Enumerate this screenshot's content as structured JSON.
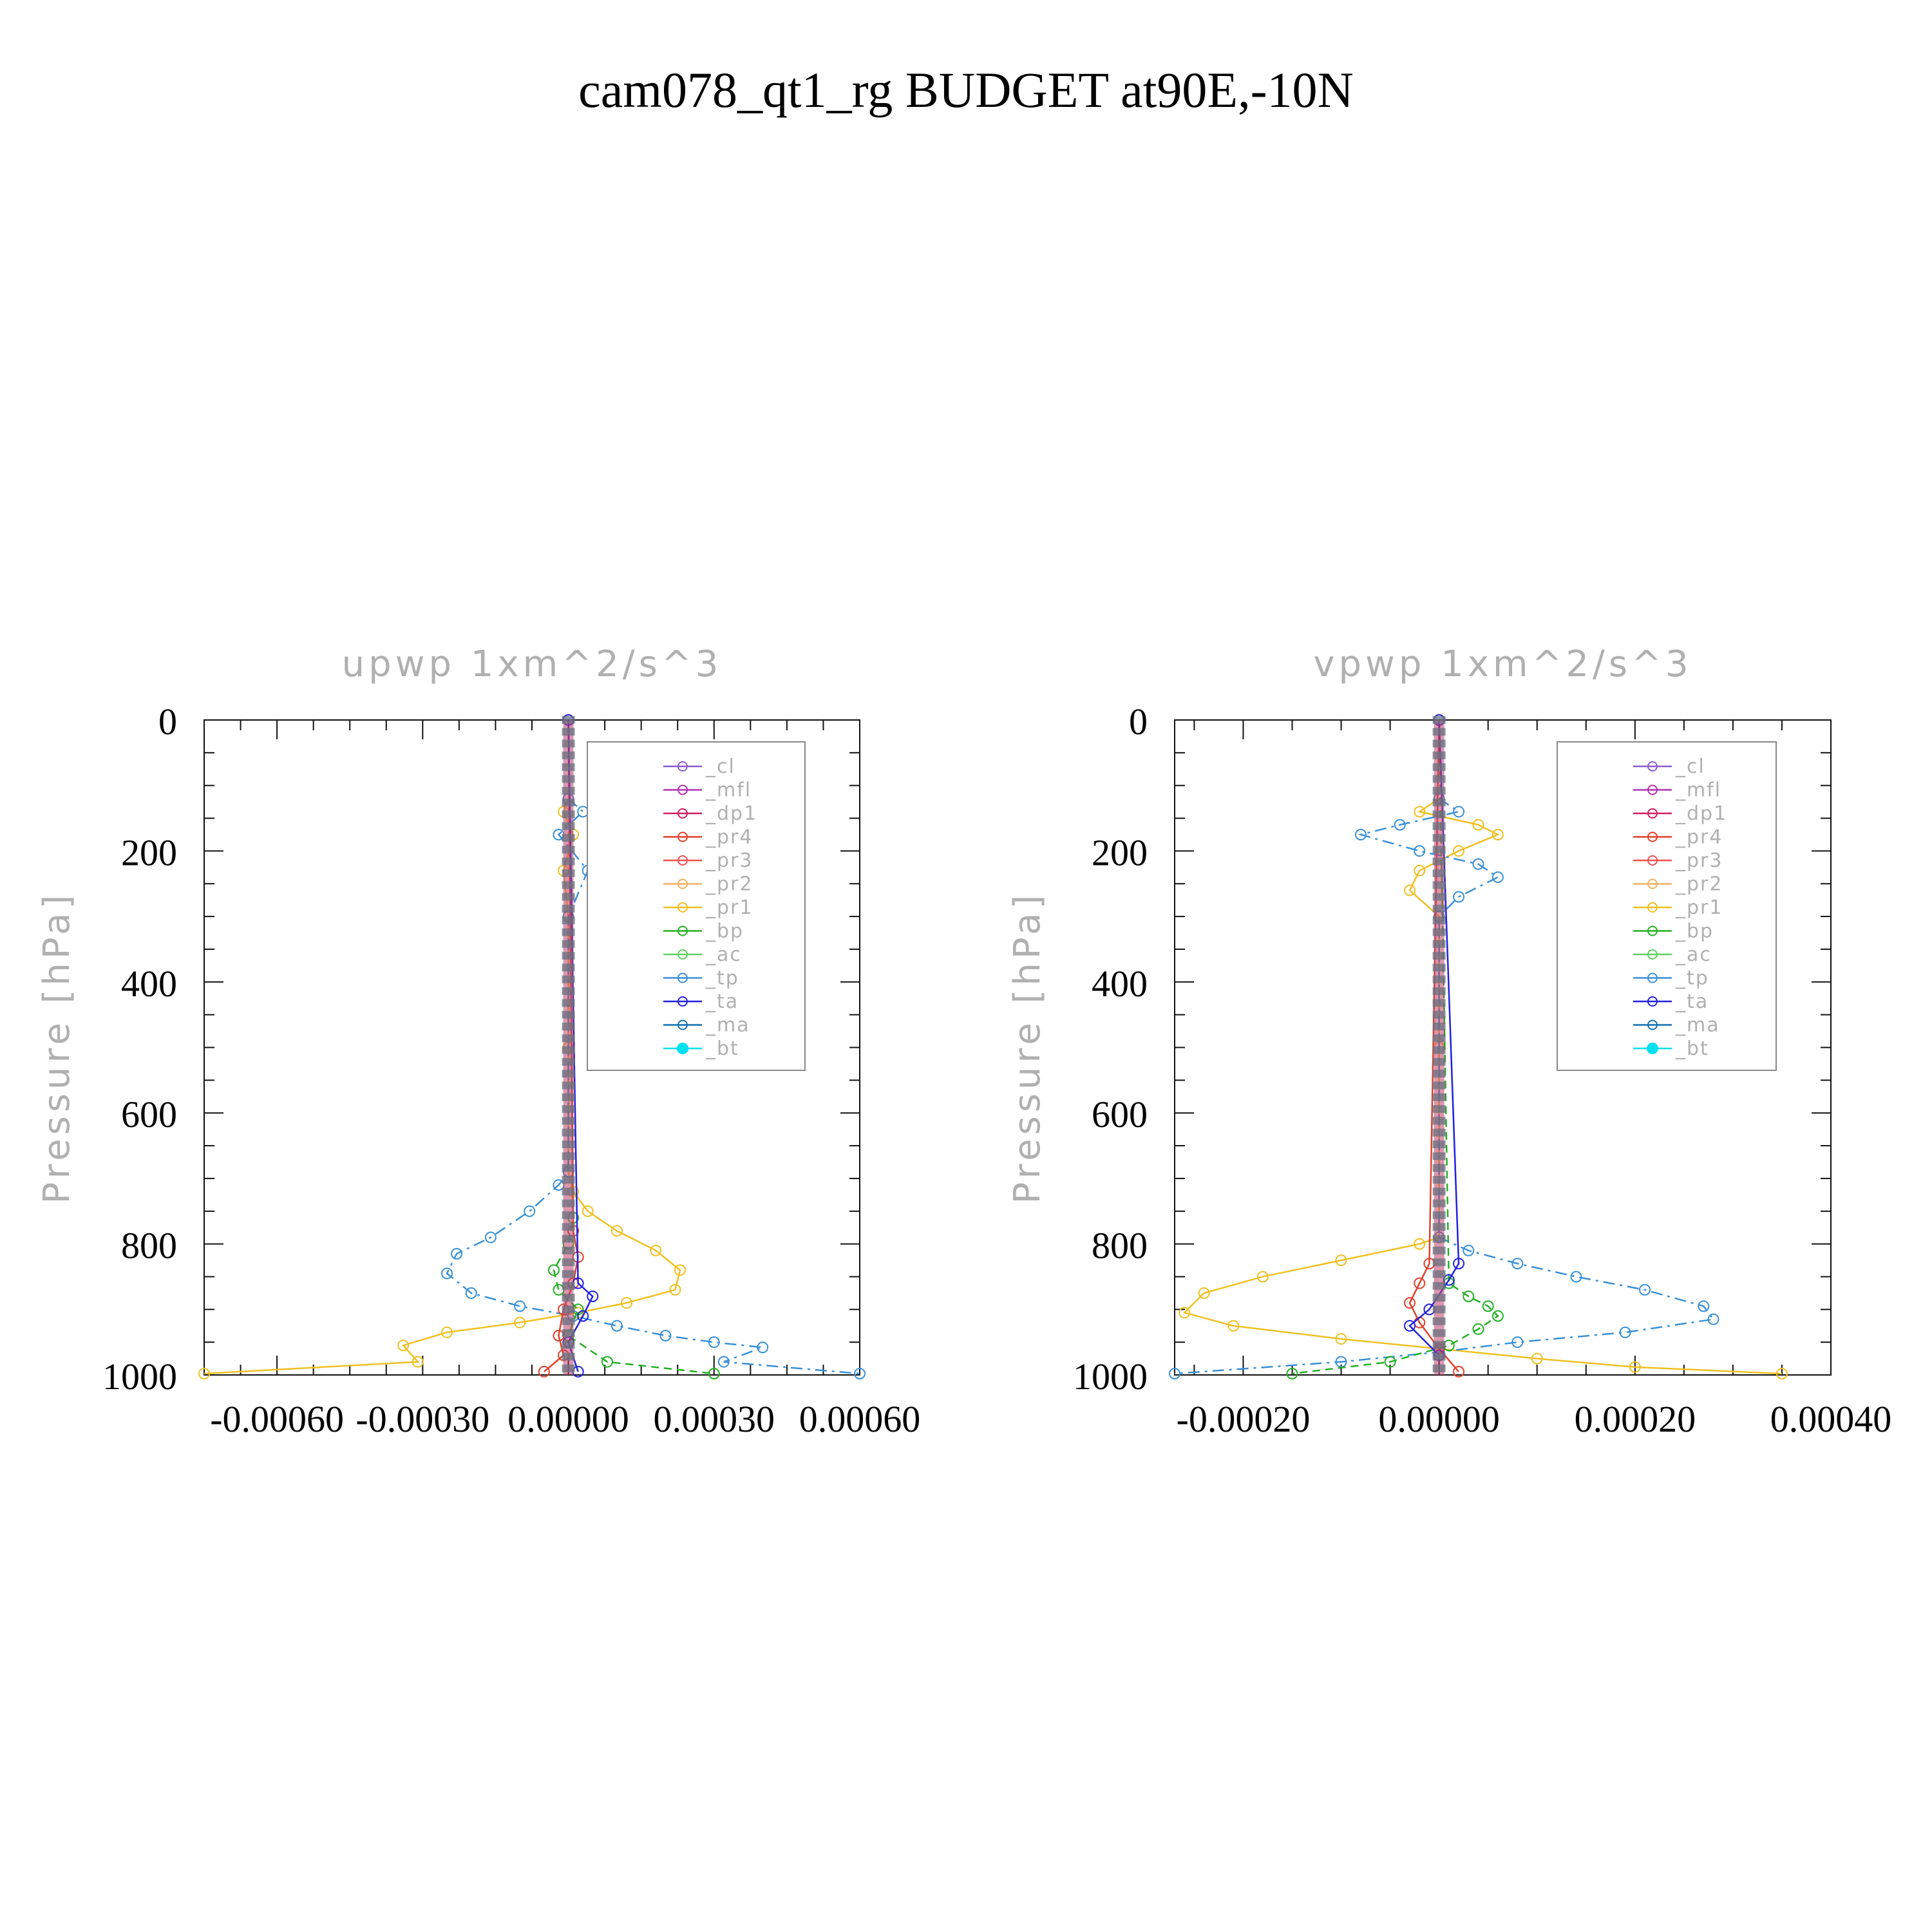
{
  "title": "cam078_qt1_rg  BUDGET at90E,-10N",
  "colors": {
    "cl": "#8a5ccc",
    "mfl": "#b530b5",
    "dp1": "#d01e60",
    "pr4": "#e0402a",
    "pr3": "#f05050",
    "pr2": "#f0b060",
    "pr1": "#f0c020",
    "bp": "#20b020",
    "ac": "#60d060",
    "tp": "#3890d8",
    "ta": "#2020e0",
    "ma": "#1070b0",
    "bt": "#00e0f0"
  },
  "legend": [
    "_cl",
    "_mfl",
    "_dp1",
    "_pr4",
    "_pr3",
    "_pr2",
    "_pr1",
    "_bp",
    "_ac",
    "_tp",
    "_ta",
    "_ma",
    "_bt"
  ],
  "chart_data": [
    {
      "type": "line",
      "title": "upwp   1xm^2/s^3",
      "ylabel": "Pressure [hPa]",
      "ylim": [
        1000,
        0
      ],
      "yticks": [
        "0",
        "200",
        "400",
        "600",
        "800",
        "1000"
      ],
      "xlim": [
        -0.00075,
        0.0006
      ],
      "xticks": [
        "-0.00060",
        "-0.00030",
        "0.00000",
        "0.00030",
        "0.00060"
      ],
      "legend_position": "top-right",
      "series": [
        {
          "name": "_pr1",
          "x": [
            0,
            -1e-05,
            1e-05,
            -1e-05,
            0,
            0,
            0,
            1e-05,
            4e-05,
            0.0001,
            0.00018,
            0.00023,
            0.00022,
            0.00012,
            2e-05,
            -0.0001,
            -0.00025,
            -0.00034,
            -0.00031,
            -0.00075
          ],
          "y": [
            120,
            140,
            175,
            230,
            300,
            500,
            690,
            720,
            750,
            780,
            810,
            840,
            870,
            890,
            905,
            920,
            935,
            955,
            980,
            998
          ]
        },
        {
          "name": "_tp",
          "x": [
            0,
            3e-05,
            -2e-05,
            4e-05,
            0,
            0,
            -2e-05,
            -8e-05,
            -0.00016,
            -0.00023,
            -0.00025,
            -0.0002,
            -0.0001,
            1e-05,
            0.0001,
            0.0002,
            0.0003,
            0.0004,
            0.00032,
            0.0006
          ],
          "y": [
            120,
            140,
            175,
            230,
            300,
            690,
            710,
            750,
            790,
            815,
            845,
            875,
            895,
            910,
            925,
            940,
            950,
            958,
            980,
            998
          ]
        },
        {
          "name": "_bp",
          "x": [
            0,
            1e-05,
            0,
            -3e-05,
            -2e-05,
            2e-05,
            0,
            8e-05,
            0.0003
          ],
          "y": [
            0,
            760,
            800,
            840,
            870,
            900,
            940,
            980,
            998
          ]
        },
        {
          "name": "_pr4",
          "x": [
            0,
            1e-05,
            2e-05,
            1e-05,
            -1e-05,
            -2e-05,
            -1e-05,
            -5e-05
          ],
          "y": [
            0,
            780,
            820,
            860,
            900,
            940,
            970,
            995
          ]
        },
        {
          "name": "_ta",
          "x": [
            0,
            2e-05,
            5e-05,
            3e-05,
            0,
            2e-05
          ],
          "y": [
            0,
            860,
            880,
            910,
            950,
            995
          ]
        }
      ]
    },
    {
      "type": "line",
      "title": "vpwp   1xm^2/s^3",
      "ylabel": "Pressure [hPa]",
      "ylim": [
        1000,
        0
      ],
      "yticks": [
        "0",
        "200",
        "400",
        "600",
        "800",
        "1000"
      ],
      "xlim": [
        -0.00027,
        0.0004
      ],
      "xticks": [
        "-0.00020",
        "0.00000",
        "0.00020",
        "0.00040"
      ],
      "legend_position": "top-right",
      "series": [
        {
          "name": "_pr1",
          "x": [
            0,
            -2e-05,
            4e-05,
            6e-05,
            2e-05,
            -2e-05,
            -3e-05,
            0,
            0,
            0,
            -2e-05,
            -0.0001,
            -0.00018,
            -0.00024,
            -0.00026,
            -0.00021,
            -0.0001,
            0,
            0.0001,
            0.0002,
            0.00035
          ],
          "y": [
            120,
            140,
            160,
            175,
            200,
            230,
            260,
            300,
            500,
            790,
            800,
            825,
            850,
            875,
            905,
            925,
            945,
            960,
            975,
            988,
            998
          ]
        },
        {
          "name": "_tp",
          "x": [
            0,
            2e-05,
            -4e-05,
            -8e-05,
            -2e-05,
            4e-05,
            6e-05,
            2e-05,
            0,
            0,
            3e-05,
            8e-05,
            0.00014,
            0.00021,
            0.00027,
            0.00028,
            0.00019,
            8e-05,
            0,
            -0.0001,
            -0.00027
          ],
          "y": [
            120,
            140,
            160,
            175,
            200,
            220,
            240,
            270,
            300,
            790,
            810,
            830,
            850,
            870,
            895,
            915,
            935,
            950,
            965,
            980,
            998
          ]
        },
        {
          "name": "_bp",
          "x": [
            0,
            1e-05,
            3e-05,
            5e-05,
            6e-05,
            4e-05,
            1e-05,
            -5e-05,
            -0.00015
          ],
          "y": [
            0,
            860,
            880,
            895,
            910,
            930,
            955,
            980,
            998
          ]
        },
        {
          "name": "_pr4",
          "x": [
            0,
            -1e-05,
            -2e-05,
            -3e-05,
            -2e-05,
            0,
            2e-05
          ],
          "y": [
            0,
            830,
            860,
            890,
            920,
            960,
            995
          ]
        },
        {
          "name": "_ta",
          "x": [
            0,
            2e-05,
            1e-05,
            -1e-05,
            -3e-05,
            0
          ],
          "y": [
            0,
            830,
            855,
            900,
            925,
            970
          ]
        }
      ]
    }
  ]
}
